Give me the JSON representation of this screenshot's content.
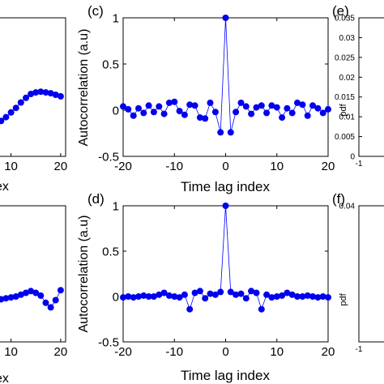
{
  "chart_data": [
    {
      "panel_label": "",
      "type": "line",
      "xlabel": "ex",
      "ylabel": "",
      "xlim": [
        -2,
        21
      ],
      "ylim": [
        -0.8,
        1.0
      ],
      "xticks": [
        "10",
        "20"
      ],
      "yticks": [],
      "x": [
        1,
        2,
        3,
        4,
        5,
        6,
        7,
        8,
        9,
        10,
        11,
        12,
        13,
        14,
        15,
        16,
        17,
        18,
        19,
        20
      ],
      "values": [
        -0.38,
        -0.4,
        -0.41,
        -0.42,
        -0.42,
        -0.41,
        -0.38,
        -0.34,
        -0.29,
        -0.23,
        -0.17,
        -0.1,
        -0.04,
        0.01,
        0.03,
        0.04,
        0.03,
        0.02,
        0.0,
        -0.02
      ]
    },
    {
      "panel_label": "(c)",
      "type": "line",
      "xlabel": "Time lag index",
      "ylabel": "Autocorrelation (a.u)",
      "xlim": [
        -20,
        20
      ],
      "ylim": [
        -0.5,
        1
      ],
      "xticks": [
        "-20",
        "-10",
        "0",
        "10",
        "20"
      ],
      "yticks": [
        "-0.5",
        "0",
        "0.5",
        "1"
      ],
      "x": [
        -20,
        -19,
        -18,
        -17,
        -16,
        -15,
        -14,
        -13,
        -12,
        -11,
        -10,
        -9,
        -8,
        -7,
        -6,
        -5,
        -4,
        -3,
        -2,
        -1,
        0,
        1,
        2,
        3,
        4,
        5,
        6,
        7,
        8,
        9,
        10,
        11,
        12,
        13,
        14,
        15,
        16,
        17,
        18,
        19,
        20
      ],
      "values": [
        0.04,
        0.01,
        -0.06,
        0.02,
        -0.03,
        0.05,
        -0.02,
        0.04,
        -0.04,
        0.08,
        0.09,
        -0.01,
        -0.05,
        0.06,
        0.05,
        -0.08,
        -0.09,
        0.08,
        -0.02,
        -0.24,
        1.0,
        -0.24,
        -0.02,
        0.08,
        0.04,
        -0.04,
        0.03,
        0.05,
        -0.03,
        0.05,
        0.03,
        -0.08,
        0.02,
        -0.03,
        0.08,
        0.06,
        -0.06,
        0.05,
        0.02,
        -0.03,
        0.01
      ]
    },
    {
      "panel_label": "(e)",
      "type": "line",
      "xlabel": "",
      "ylabel": "pdf",
      "xlim": [
        -1,
        1
      ],
      "ylim": [
        0,
        0.035
      ],
      "xticks": [
        "-1"
      ],
      "yticks": [
        "0",
        "0.005",
        "0.01",
        "0.015",
        "0.02",
        "0.025",
        "0.03",
        "0.035"
      ],
      "x": [],
      "values": []
    },
    {
      "panel_label": "",
      "type": "line",
      "xlabel": "ex",
      "ylabel": "",
      "xlim": [
        -2,
        21
      ],
      "ylim": [
        -0.5,
        1.0
      ],
      "xticks": [
        "10",
        "20"
      ],
      "yticks": [],
      "x": [
        1,
        2,
        3,
        4,
        5,
        6,
        7,
        8,
        9,
        10,
        11,
        12,
        13,
        14,
        15,
        16,
        17,
        18,
        19,
        20
      ],
      "values": [
        -0.01,
        -0.02,
        -0.03,
        -0.04,
        -0.05,
        -0.05,
        -0.04,
        -0.03,
        -0.02,
        -0.01,
        0.0,
        0.02,
        0.04,
        0.06,
        0.04,
        0.01,
        -0.07,
        -0.12,
        -0.04,
        0.07
      ]
    },
    {
      "panel_label": "(d)",
      "type": "line",
      "xlabel": "Time lag index",
      "ylabel": "Autocorrelation (a.u)",
      "xlim": [
        -20,
        20
      ],
      "ylim": [
        -0.5,
        1
      ],
      "xticks": [
        "-20",
        "-10",
        "0",
        "10",
        "20"
      ],
      "yticks": [
        "-0.5",
        "0",
        "0.5",
        "1"
      ],
      "x": [
        -20,
        -19,
        -18,
        -17,
        -16,
        -15,
        -14,
        -13,
        -12,
        -11,
        -10,
        -9,
        -8,
        -7,
        -6,
        -5,
        -4,
        -3,
        -2,
        -1,
        0,
        1,
        2,
        3,
        4,
        5,
        6,
        7,
        8,
        9,
        10,
        11,
        12,
        13,
        14,
        15,
        16,
        17,
        18,
        19,
        20
      ],
      "values": [
        -0.01,
        0.0,
        -0.01,
        0.0,
        0.01,
        0.0,
        0.0,
        0.02,
        0.04,
        0.01,
        0.0,
        -0.01,
        0.02,
        -0.14,
        0.04,
        0.06,
        -0.02,
        0.03,
        0.02,
        0.05,
        1.0,
        0.05,
        0.02,
        0.03,
        -0.02,
        0.06,
        0.04,
        -0.14,
        0.02,
        -0.01,
        0.0,
        0.01,
        0.04,
        0.02,
        0.0,
        0.0,
        0.01,
        0.0,
        -0.01,
        0.0,
        -0.01
      ]
    },
    {
      "panel_label": "(f)",
      "type": "line",
      "xlabel": "",
      "ylabel": "pdf",
      "xlim": [
        -1,
        1
      ],
      "ylim": [
        0,
        0.04
      ],
      "xticks": [
        "-1"
      ],
      "yticks": [
        "0",
        "0.04"
      ],
      "x": [],
      "values": []
    }
  ]
}
